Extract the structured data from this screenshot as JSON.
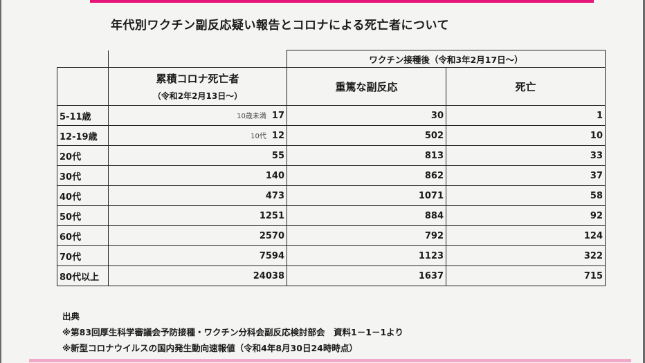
{
  "title": "年代別ワクチン副反応疑い報告とコロナによる死亡者について",
  "header": {
    "after_vaccination": "ワクチン接種後（令和3年2月17日～）",
    "cumulative_deaths": "累積コロナ死亡者",
    "cumulative_period": "（令和2年2月13日～）",
    "serious_reactions": "重篤な副反応",
    "deaths": "死亡"
  },
  "rows": [
    {
      "age": "5-11歳",
      "note": "10歳未満",
      "covid_deaths": "17",
      "serious": "30",
      "vax_deaths": "1"
    },
    {
      "age": "12-19歳",
      "note": "10代",
      "covid_deaths": "12",
      "serious": "502",
      "vax_deaths": "10"
    },
    {
      "age": "20代",
      "note": "",
      "covid_deaths": "55",
      "serious": "813",
      "vax_deaths": "33"
    },
    {
      "age": "30代",
      "note": "",
      "covid_deaths": "140",
      "serious": "862",
      "vax_deaths": "37"
    },
    {
      "age": "40代",
      "note": "",
      "covid_deaths": "473",
      "serious": "1071",
      "vax_deaths": "58"
    },
    {
      "age": "50代",
      "note": "",
      "covid_deaths": "1251",
      "serious": "884",
      "vax_deaths": "92"
    },
    {
      "age": "60代",
      "note": "",
      "covid_deaths": "2570",
      "serious": "792",
      "vax_deaths": "124"
    },
    {
      "age": "70代",
      "note": "",
      "covid_deaths": "7594",
      "serious": "1123",
      "vax_deaths": "322"
    },
    {
      "age": "80代以上",
      "note": "",
      "covid_deaths": "24038",
      "serious": "1637",
      "vax_deaths": "715"
    }
  ],
  "source": {
    "heading": "出典",
    "line1": "※第83回厚生科学審議会予防接種・ワクチン分科会副反応検討部会　資料1－1－1より",
    "line2": "※新型コロナウイルスの国内発生動向速報値（令和4年8月30日24時時点）"
  },
  "colors": {
    "accent_top": "#e6157a",
    "accent_bottom": "#f2a8c9",
    "background": "#f4f4f2"
  }
}
